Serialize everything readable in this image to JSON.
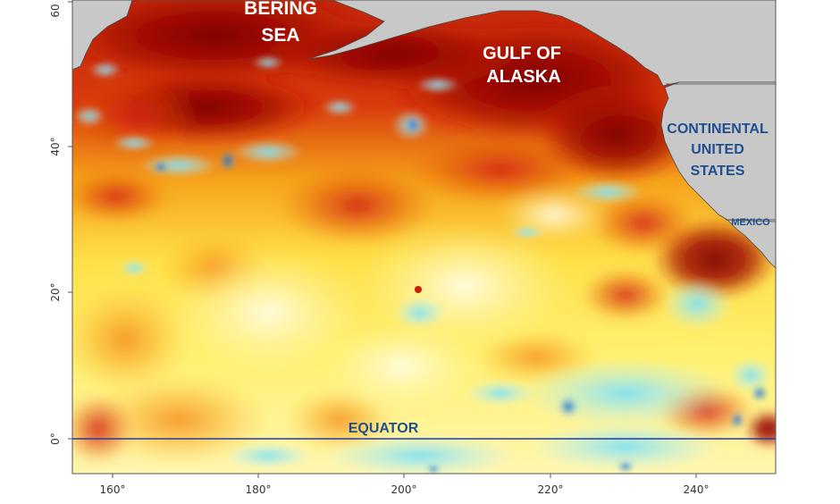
{
  "map": {
    "labels": {
      "bering_sea_line1": "BERING",
      "bering_sea_line2": "SEA",
      "gulf_of_alaska_line1": "GULF OF",
      "gulf_of_alaska_line2": "ALASKA",
      "continental_us_line1": "CONTINENTAL",
      "continental_us_line2": "UNITED",
      "continental_us_line3": "STATES",
      "mexico": "MEXICO",
      "equator": "EQUATOR"
    },
    "x_axis_ticks": [
      "160°",
      "180°",
      "200°",
      "220°",
      "240°"
    ],
    "y_axis_ticks": [
      "0°",
      "20°",
      "40°",
      "60"
    ],
    "colors": {
      "land": "#c8c8c8",
      "coastline": "#4a4a4a",
      "equator_line": "#2a3a9a",
      "label_white": "#ffffff",
      "label_blue": "#1f4f8f",
      "anomaly_strong_warm": "#8b0000",
      "anomaly_warm": "#d22a0a",
      "anomaly_mild_warm": "#f7a21b",
      "anomaly_slight_warm": "#ffe94a",
      "anomaly_neutral": "#fffbd0",
      "anomaly_cool": "#8fe6f5",
      "anomaly_cold": "#1f74d6"
    }
  }
}
